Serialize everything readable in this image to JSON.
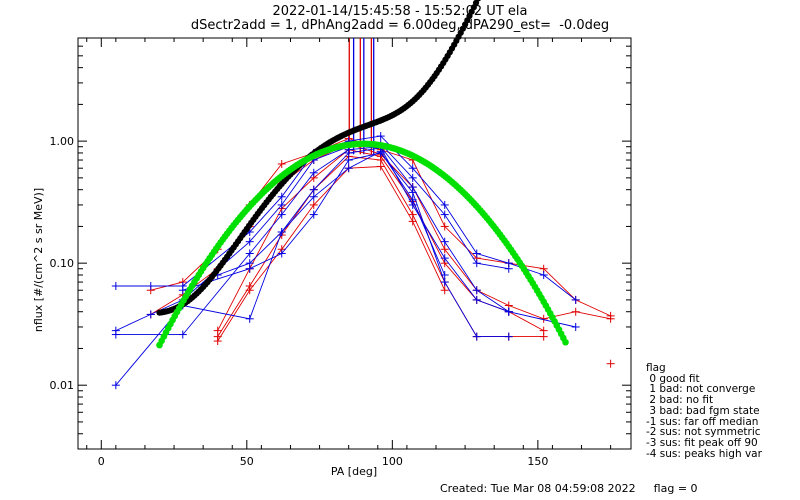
{
  "header": {
    "title": "2022-01-14/15:45:58 - 15:52:02 UT ela",
    "subtitle": "dSectr2add = 1, dPhAng2add = 6.00deg, dPA290_est=  -0.0deg"
  },
  "legend": {
    "title": "flag",
    "items": [
      " 0 good fit",
      " 1 bad: not converge",
      " 2 bad: no fit",
      " 3 bad: bad fgm state",
      "-1 sus: far off median",
      "-2 sus: not symmetric",
      "-3 sus: fit peak off 90",
      "-4 sus: peaks high var"
    ]
  },
  "footer": {
    "created": "Created: Tue Mar 08 04:59:08 2022",
    "flag": "flag = 0"
  },
  "colors": {
    "red": "#e00000",
    "blue": "#0000e0",
    "green": "#00e000",
    "black": "#000000"
  },
  "chart_data": {
    "type": "scatter",
    "xlabel": "PA [deg]",
    "ylabel": "nflux [#/(cm^2 s sr MeV)]",
    "xlim": [
      -8,
      182
    ],
    "ylim": [
      0.003,
      7
    ],
    "yscale": "log",
    "xticks": [
      0,
      50,
      100,
      150
    ],
    "xtick_labels": [
      "0",
      "50",
      "100",
      "150"
    ],
    "yticks": [
      0.01,
      0.1,
      1.0
    ],
    "ytick_labels": [
      "0.01",
      "0.10",
      "1.00"
    ],
    "vlines": {
      "red": [
        85.2,
        89.0,
        92.8
      ],
      "blue": [
        86.7,
        90.2,
        93.6
      ]
    },
    "series": [
      {
        "color": "red",
        "x": [
          17,
          28,
          40,
          51,
          62,
          73,
          85,
          96,
          107,
          118,
          129,
          140,
          152,
          163,
          175
        ],
        "y": [
          0.06,
          0.07,
          0.13,
          0.3,
          0.65,
          0.8,
          1.05,
          0.85,
          0.7,
          0.2,
          0.11,
          0.1,
          0.09,
          0.05,
          0.037
        ]
      },
      {
        "color": "red",
        "x": [
          17,
          28,
          40,
          51,
          62,
          73,
          85,
          96,
          107,
          118,
          129,
          140,
          152,
          163,
          175
        ],
        "y": [
          0.038,
          0.055,
          0.09,
          0.2,
          0.45,
          0.7,
          0.95,
          0.78,
          0.42,
          0.13,
          0.06,
          0.045,
          0.035,
          0.04,
          0.035
        ]
      },
      {
        "color": "red",
        "x": [
          40,
          51,
          62,
          73,
          85,
          96,
          107,
          118,
          129,
          140,
          152
        ],
        "y": [
          0.028,
          0.09,
          0.28,
          0.5,
          0.85,
          0.75,
          0.32,
          0.1,
          0.05,
          0.04,
          0.028
        ]
      },
      {
        "color": "red",
        "x": [
          40,
          51,
          62,
          73,
          85,
          96,
          107,
          118,
          129,
          140,
          152
        ],
        "y": [
          0.025,
          0.065,
          0.17,
          0.4,
          0.75,
          0.7,
          0.25,
          0.07,
          0.025,
          0.025,
          0.025
        ]
      },
      {
        "color": "red",
        "x": [
          40,
          51,
          62,
          73,
          85,
          96,
          107,
          118
        ],
        "y": [
          0.023,
          0.06,
          0.13,
          0.3,
          0.6,
          0.62,
          0.22,
          0.06
        ]
      },
      {
        "color": "red",
        "x": [
          175
        ],
        "y": [
          0.015
        ]
      },
      {
        "color": "blue",
        "x": [
          5,
          17,
          28,
          51,
          62,
          73,
          85,
          96,
          107,
          118,
          129,
          140,
          152,
          163
        ],
        "y": [
          0.065,
          0.065,
          0.065,
          0.18,
          0.35,
          0.8,
          1.0,
          1.1,
          0.6,
          0.3,
          0.12,
          0.1,
          0.08,
          0.05
        ]
      },
      {
        "color": "blue",
        "x": [
          5,
          17,
          28,
          51,
          62,
          73,
          85,
          96,
          107,
          118,
          129,
          140
        ],
        "y": [
          0.028,
          0.038,
          0.05,
          0.15,
          0.3,
          0.7,
          0.9,
          0.95,
          0.5,
          0.25,
          0.1,
          0.09
        ]
      },
      {
        "color": "blue",
        "x": [
          5,
          28,
          51,
          62,
          73,
          85,
          96,
          107,
          118,
          129,
          140,
          163
        ],
        "y": [
          0.026,
          0.026,
          0.12,
          0.25,
          0.55,
          0.85,
          0.9,
          0.42,
          0.15,
          0.06,
          0.04,
          0.03
        ]
      },
      {
        "color": "blue",
        "x": [
          5,
          28,
          51,
          62,
          73,
          85,
          96,
          107,
          118,
          129,
          140
        ],
        "y": [
          0.01,
          0.045,
          0.035,
          0.18,
          0.4,
          0.8,
          0.88,
          0.3,
          0.11,
          0.05,
          0.04
        ]
      },
      {
        "color": "blue",
        "x": [
          28,
          51,
          62,
          73,
          85,
          96,
          107,
          118,
          129,
          140
        ],
        "y": [
          0.06,
          0.09,
          0.12,
          0.25,
          0.7,
          0.8,
          0.38,
          0.07,
          0.025,
          0.025
        ]
      },
      {
        "color": "blue",
        "x": [
          40,
          51,
          62,
          73,
          85,
          96,
          107,
          118
        ],
        "y": [
          0.08,
          0.1,
          0.18,
          0.35,
          0.6,
          0.82,
          0.33,
          0.08
        ]
      }
    ],
    "fit_green": {
      "pa_range": [
        20,
        160
      ],
      "peak_pa": 90,
      "peak": 0.95,
      "sigma": 25.4
    },
    "fit_black": {
      "pa_range": [
        20,
        160
      ],
      "peak_pa": 90,
      "peak": 0.94,
      "sigma": 20.5,
      "baseline": 0.036,
      "baseline_min_pa": 25,
      "baseline_curvature": 0.00055,
      "baseline_wing_pa": 143,
      "baseline_wing_curvature": 0.25
    }
  }
}
